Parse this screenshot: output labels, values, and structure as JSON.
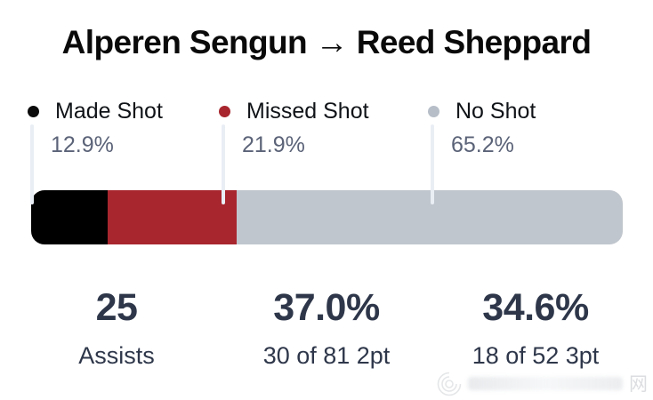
{
  "title": "Alperen Sengun → Reed Sheppard",
  "legend": {
    "items": [
      {
        "label": "Made Shot",
        "pct": "12.9%",
        "dot_color": "#0b0b0b"
      },
      {
        "label": "Missed Shot",
        "pct": "21.9%",
        "dot_color": "#a8262e"
      },
      {
        "label": "No Shot",
        "pct": "65.2%",
        "dot_color": "#b7bec8"
      }
    ]
  },
  "chart_data": {
    "type": "bar",
    "subtype": "horizontal-stacked-percentage",
    "title": "Alperen Sengun → Reed Sheppard",
    "unit": "percent",
    "xlim": [
      0,
      100
    ],
    "grid": false,
    "legend_position": "top",
    "series": [
      {
        "name": "Made Shot",
        "value": 12.9,
        "color": "#000000"
      },
      {
        "name": "Missed Shot",
        "value": 21.9,
        "color": "#a8262e"
      },
      {
        "name": "No Shot",
        "value": 65.2,
        "color": "#c0c6cd"
      }
    ]
  },
  "stats": [
    {
      "value": "25",
      "label": "Assists"
    },
    {
      "value": "37.0%",
      "label": "30 of 81 2pt"
    },
    {
      "value": "34.6%",
      "label": "18 of 52 3pt"
    }
  ],
  "watermark": {
    "net_glyph": "网"
  },
  "colors": {
    "background": "#ffffff",
    "title_text": "#0a0a0a",
    "legend_pct_text": "#5b6378",
    "stat_text": "#2e374a",
    "leader_line": "#e9eef5"
  }
}
